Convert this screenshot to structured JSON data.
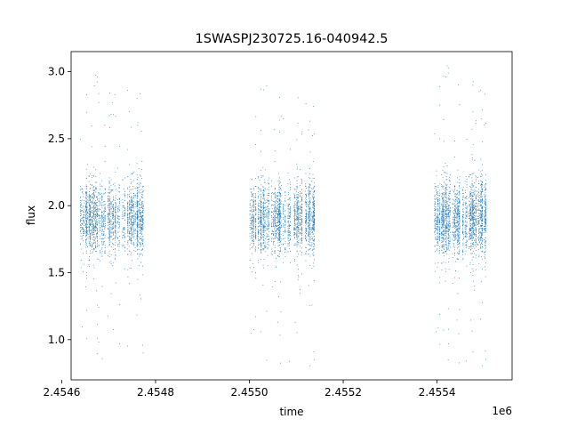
{
  "chart_data": {
    "type": "scatter",
    "title": "1SWASPJ230725.16-040942.5",
    "xlabel": "time",
    "ylabel": "flux",
    "x_offset_label": "1e6",
    "xlim": [
      2454620,
      2455560
    ],
    "ylim": [
      0.7,
      3.15
    ],
    "x_ticks": [
      {
        "value": 2454600,
        "label": "2.4546"
      },
      {
        "value": 2454800,
        "label": "2.4548"
      },
      {
        "value": 2455000,
        "label": "2.4550"
      },
      {
        "value": 2455200,
        "label": "2.4552"
      },
      {
        "value": 2455400,
        "label": "2.4554"
      }
    ],
    "y_ticks": [
      {
        "value": 1.0,
        "label": "1.0"
      },
      {
        "value": 1.5,
        "label": "1.5"
      },
      {
        "value": 2.0,
        "label": "2.0"
      },
      {
        "value": 2.5,
        "label": "2.5"
      },
      {
        "value": 3.0,
        "label": "3.0"
      }
    ],
    "grid": false,
    "marker_color": "#1f77b4",
    "series": [
      {
        "segments": [
          {
            "x_start": 2454640,
            "x_end": 2454775,
            "median": 1.9,
            "spread": 0.13,
            "min": 0.85,
            "max": 2.98
          },
          {
            "x_start": 2455000,
            "x_end": 2455140,
            "median": 1.9,
            "spread": 0.13,
            "min": 0.8,
            "max": 2.95
          },
          {
            "x_start": 2455395,
            "x_end": 2455505,
            "median": 1.9,
            "spread": 0.14,
            "min": 0.8,
            "max": 3.05
          }
        ]
      }
    ]
  }
}
